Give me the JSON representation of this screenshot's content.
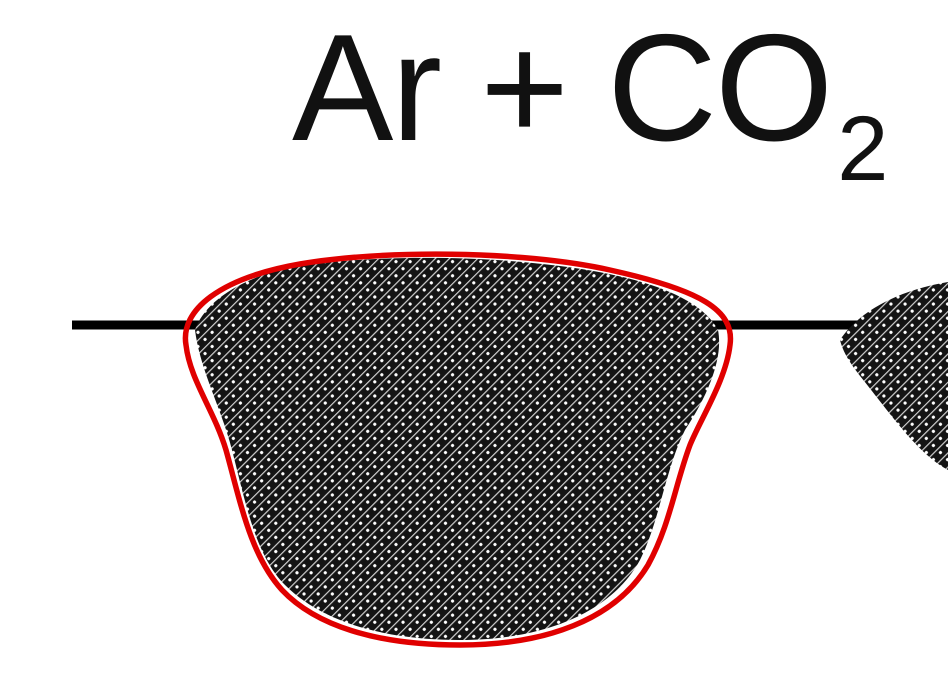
{
  "diagram": {
    "label_main": "Ar + CO",
    "label_subscript": "2",
    "colors": {
      "plate_line": "#000000",
      "bead_fill": "#1a1a1a",
      "highlight_outline": "#e00000"
    },
    "elements": [
      "base-plate-line",
      "weld-bead-primary",
      "weld-bead-secondary",
      "highlight-outline"
    ]
  }
}
